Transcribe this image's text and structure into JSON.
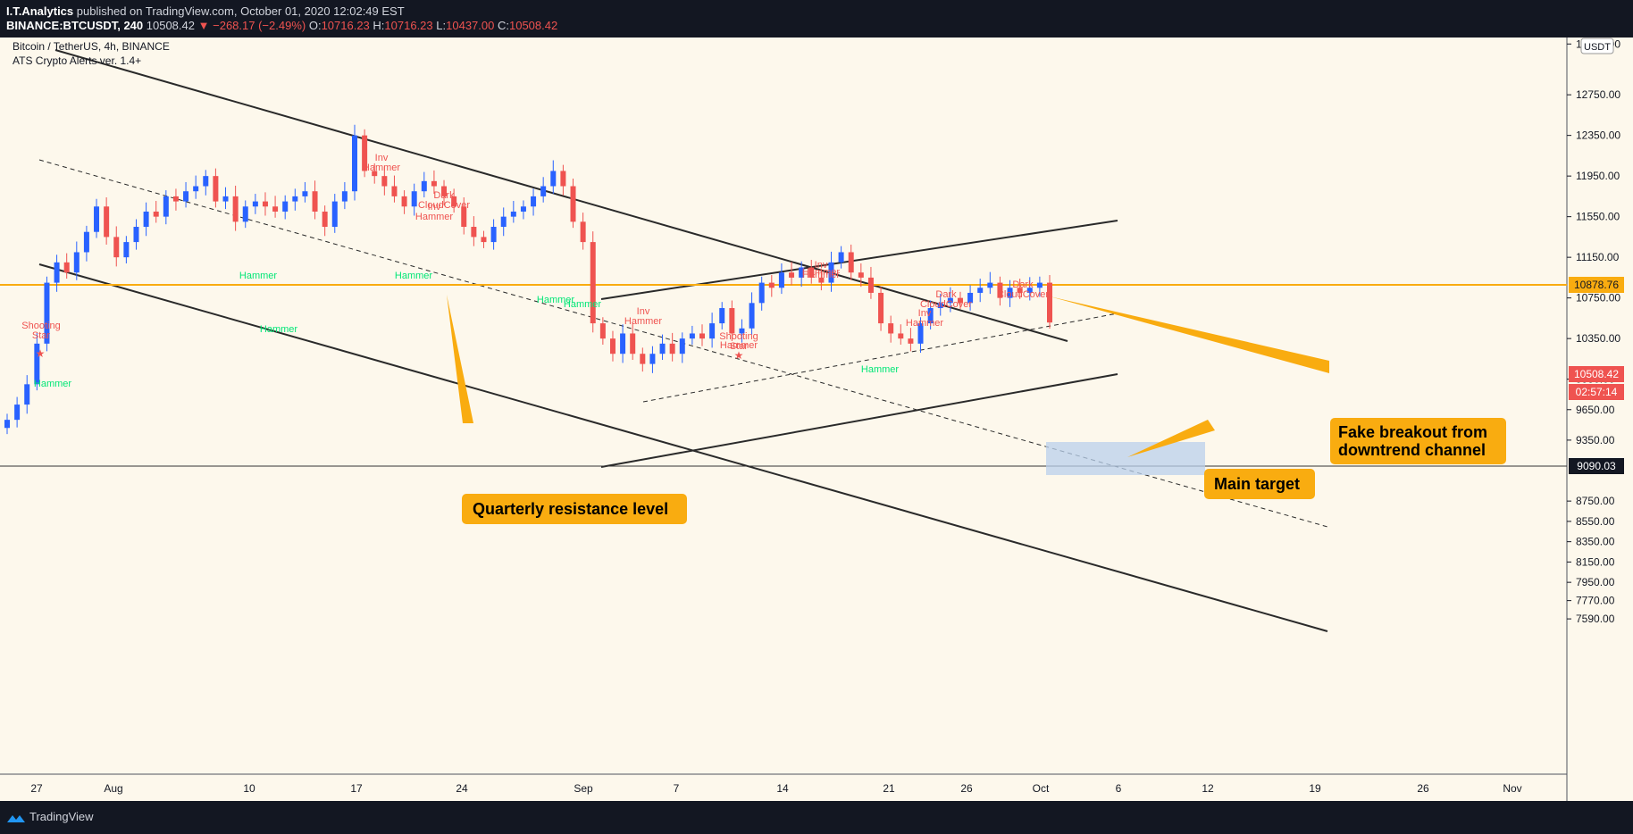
{
  "header": {
    "author": "I.T.Analytics",
    "published": "published on TradingView.com, October 01, 2020 12:02:49 EST",
    "symbol_interval": "BINANCE:BTCUSDT, 240",
    "last": "10508.42",
    "change": "−268.17 (−2.49%)",
    "o_label": "O:",
    "o": "10716.23",
    "h_label": "H:",
    "h": "10716.23",
    "l_label": "L:",
    "l": "10437.00",
    "c_label": "C:",
    "c": "10508.42"
  },
  "legend": {
    "title": "Bitcoin / TetherUS, 4h, BINANCE",
    "indicator": "ATS Crypto Alerts ver. 1.4+"
  },
  "footer": {
    "brand": "TradingView"
  },
  "colors": {
    "background": "#fdf8ec",
    "up": "#2962ff",
    "down": "#ef5350",
    "accent": "#f9ac10",
    "text": "#131722"
  },
  "icons": [
    "down-triangle-icon",
    "tradingview-logo-icon",
    "star-icon"
  ],
  "chart_data": {
    "type": "candlestick",
    "price_axis": {
      "currency": "USDT",
      "ticks": [
        "13250.00",
        "12750.00",
        "12350.00",
        "11950.00",
        "11550.00",
        "11150.00",
        "10750.00",
        "10350.00",
        "9950.00",
        "9650.00",
        "9350.00",
        "8750.00",
        "8550.00",
        "8350.00",
        "8150.00",
        "7950.00",
        "7770.00",
        "7590.00"
      ],
      "price_labels": [
        {
          "text": "10878.76",
          "kind": "level"
        },
        {
          "text": "10508.42",
          "kind": "last"
        },
        {
          "text": "02:57:14",
          "kind": "countdown"
        },
        {
          "text": "9090.03",
          "kind": "level"
        }
      ]
    },
    "time_axis": {
      "ticks": [
        "27",
        "Aug",
        "10",
        "17",
        "24",
        "Sep",
        "7",
        "14",
        "21",
        "26",
        "Oct",
        "6",
        "12",
        "19",
        "26",
        "Nov"
      ]
    },
    "approx_closes": [
      9550,
      9700,
      9900,
      10300,
      10900,
      11100,
      11000,
      11200,
      11400,
      11650,
      11350,
      11150,
      11300,
      11450,
      11600,
      11550,
      11750,
      11700,
      11800,
      11850,
      11950,
      11700,
      11750,
      11500,
      11650,
      11700,
      11650,
      11600,
      11700,
      11750,
      11800,
      11600,
      11450,
      11700,
      11800,
      12350,
      12000,
      11950,
      11850,
      11750,
      11650,
      11800,
      11900,
      11850,
      11750,
      11650,
      11450,
      11350,
      11300,
      11450,
      11550,
      11600,
      11650,
      11750,
      11850,
      12000,
      11850,
      11500,
      11300,
      10500,
      10350,
      10200,
      10400,
      10200,
      10100,
      10200,
      10300,
      10200,
      10350,
      10400,
      10350,
      10500,
      10650,
      10400,
      10450,
      10700,
      10900,
      10850,
      11000,
      10950,
      11050,
      10950,
      10900,
      11100,
      11200,
      11000,
      10950,
      10800,
      10500,
      10400,
      10350,
      10300,
      10500,
      10650,
      10700,
      10750,
      10700,
      10800,
      10850,
      10900,
      10750,
      10850,
      10800,
      10850,
      10900,
      10508
    ],
    "levels": [
      {
        "price": 10878.76,
        "style": "horizontal",
        "color": "#f9ac10"
      },
      {
        "price": 9090.03,
        "style": "horizontal",
        "color": "#131722"
      }
    ],
    "patterns": [
      {
        "label": "Inv\nHammer",
        "color": "#ef5350"
      },
      {
        "label": "Dark\nCloudCover",
        "color": "#ef5350"
      },
      {
        "label": "Inv\nHammer",
        "color": "#ef5350"
      },
      {
        "label": "Hammer",
        "color": "#00e676"
      },
      {
        "label": "Hammer",
        "color": "#00e676"
      },
      {
        "label": "Hammer",
        "color": "#00e676"
      },
      {
        "label": "Hammer",
        "color": "#00e676"
      },
      {
        "label": "Hammer",
        "color": "#00e676"
      },
      {
        "label": "Hammer",
        "color": "#00e676"
      },
      {
        "label": "Shooting\nStar",
        "color": "#ef5350"
      },
      {
        "label": "Inv\nHammer",
        "color": "#ef5350"
      },
      {
        "label": "Shooting\nStar",
        "color": "#ef5350"
      },
      {
        "label": "Hammer",
        "color": "#ef5350"
      },
      {
        "label": "Inv\nHammer",
        "color": "#ef5350"
      },
      {
        "label": "Hammer",
        "color": "#ef5350"
      },
      {
        "label": "Dark\nCloudCover",
        "color": "#ef5350"
      },
      {
        "label": "Inv\nHammer",
        "color": "#ef5350"
      },
      {
        "label": "Dark\nCloudCover",
        "color": "#ef5350"
      },
      {
        "label": "Hammer",
        "color": "#00e676"
      }
    ],
    "annotations": {
      "quarterly": "Quarterly resistance level",
      "fake_breakout": "Fake breakout from\ndowntrend channel",
      "main_target": "Main target"
    }
  }
}
